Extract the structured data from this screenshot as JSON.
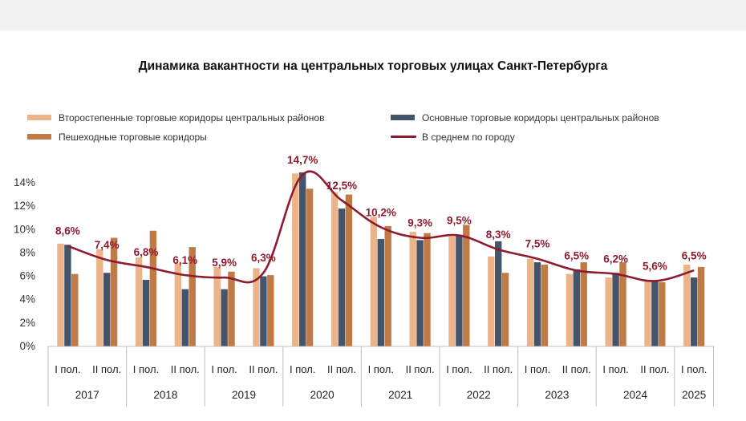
{
  "chart_data": {
    "type": "bar",
    "title": "Динамика вакантности на центральных торговых улицах Санкт-Петербурга",
    "categories": [
      "I пол.",
      "II пол.",
      "I пол.",
      "II пол.",
      "I пол.",
      "II пол.",
      "I пол.",
      "II пол.",
      "I пол.",
      "II пол.",
      "I пол.",
      "II пол.",
      "I пол.",
      "II пол.",
      "I пол.",
      "II пол.",
      "I пол."
    ],
    "years": [
      "2017",
      "2018",
      "2019",
      "2020",
      "2021",
      "2022",
      "2023",
      "2024",
      "2025"
    ],
    "yticks": [
      "0%",
      "2%",
      "4%",
      "6%",
      "8%",
      "10%",
      "12%",
      "14%"
    ],
    "ylim": [
      0,
      15
    ],
    "legend_position": "top",
    "series": [
      {
        "name": "Второстепенные торговые коридоры центральных районов",
        "kind": "bar",
        "color": "#EDB48A",
        "values": [
          8.8,
          8.3,
          7.6,
          7.1,
          6.8,
          6.7,
          14.8,
          13.2,
          11.1,
          9.8,
          9.4,
          7.7,
          7.5,
          6.2,
          5.9,
          5.6,
          7.0
        ]
      },
      {
        "name": "Основные торговые коридоры центральных районов",
        "kind": "bar",
        "color": "#44546A",
        "values": [
          8.7,
          6.3,
          5.7,
          4.9,
          4.9,
          6.0,
          14.9,
          11.8,
          9.2,
          9.1,
          9.5,
          9.0,
          7.2,
          6.6,
          6.3,
          5.6,
          5.9
        ]
      },
      {
        "name": "Пешеходные торговые коридоры",
        "kind": "bar",
        "color": "#C07A45",
        "values": [
          6.2,
          9.3,
          9.9,
          8.5,
          6.4,
          6.1,
          13.5,
          13.0,
          10.3,
          9.7,
          10.4,
          6.3,
          7.0,
          7.2,
          7.2,
          5.5,
          6.8
        ]
      },
      {
        "name": "В среднем по городу",
        "kind": "line",
        "color": "#8E1B2E",
        "values": [
          8.6,
          7.4,
          6.8,
          6.1,
          5.9,
          6.3,
          14.7,
          12.5,
          10.2,
          9.3,
          9.5,
          8.3,
          7.5,
          6.5,
          6.2,
          5.6,
          6.5
        ],
        "labels": [
          "8,6%",
          "7,4%",
          "6,8%",
          "6,1%",
          "5,9%",
          "6,3%",
          "14,7%",
          "12,5%",
          "10,2%",
          "9,3%",
          "9,5%",
          "8,3%",
          "7,5%",
          "6,5%",
          "6,2%",
          "5,6%",
          "6,5%"
        ]
      }
    ]
  }
}
